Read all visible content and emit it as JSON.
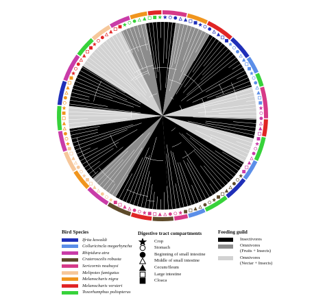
{
  "legends": {
    "species": {
      "title": "Bird Species",
      "items": [
        {
          "label": "Ifrita kowaldi",
          "color": "#1f2fb8"
        },
        {
          "label": "Colluricincla megarhyncha",
          "color": "#5b8ee8"
        },
        {
          "label": "Rhipidura atra",
          "color": "#c93ca8"
        },
        {
          "label": "Crateroscelis robusta",
          "color": "#5e4a2a"
        },
        {
          "label": "Sericornis nouhuysi",
          "color": "#d63a88"
        },
        {
          "label": "Melipotes fumigatus",
          "color": "#f6c79a"
        },
        {
          "label": "Melanocharis nigra",
          "color": "#f0951e"
        },
        {
          "label": "Melanocharis versteri",
          "color": "#e02525"
        },
        {
          "label": "Toxorhamphus poliopterus",
          "color": "#37d23a"
        }
      ]
    },
    "compartments": {
      "title": "Digestive tract compartments",
      "items": [
        {
          "label": "Crop",
          "icon": "filled-star-icon"
        },
        {
          "label": "Stomach",
          "icon": "open-circle-icon"
        },
        {
          "label": "Beginning of small intestine",
          "icon": "filled-circle-icon"
        },
        {
          "label": "Middle of small intestine",
          "icon": "open-triangle-icon"
        },
        {
          "label": "Cecum/Ileum",
          "icon": "filled-triangle-icon"
        },
        {
          "label": "Large intestine",
          "icon": "open-square-icon"
        },
        {
          "label": "Cloaca",
          "icon": "filled-square-icon"
        }
      ]
    },
    "feeding": {
      "title": "Feeding guild",
      "items": [
        {
          "line1": "Insectivores",
          "line2": "",
          "color": "#000000"
        },
        {
          "line1": "Omnivores",
          "line2": "(Fruits + Insects)",
          "color": "#8c8c8c"
        },
        {
          "line1": "Omnivores",
          "line2": "(Nectar + Insects)",
          "color": "#d2d2d2"
        }
      ]
    }
  },
  "tree": {
    "guild_colors": {
      "insectivore": "#000000",
      "omnivore_fruit": "#8c8c8c",
      "omnivore_nectar": "#d2d2d2"
    }
  }
}
